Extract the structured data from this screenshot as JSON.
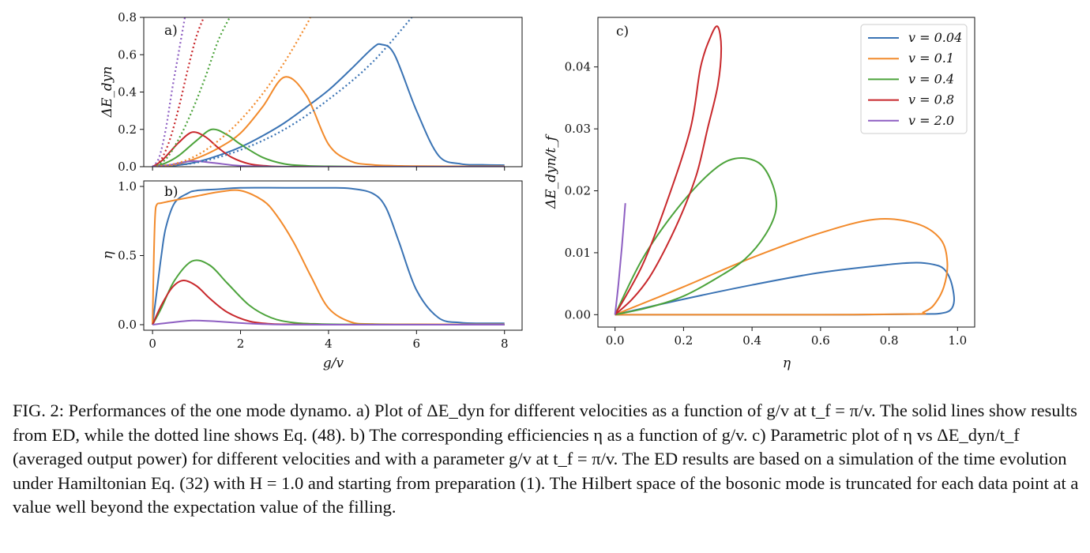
{
  "colors": {
    "v=0.04": "#3a73b4",
    "v=0.1": "#f28a2b",
    "v=0.4": "#4ca33b",
    "v=0.8": "#c8282c",
    "v=2.0": "#8e5fc2"
  },
  "chart_data": [
    {
      "panel": "a)",
      "type": "line",
      "ylabel": "ΔE_dyn",
      "xlim": [
        -0.2,
        8.4
      ],
      "ylim": [
        0,
        0.8
      ],
      "yticks": [
        "0.0",
        "0.2",
        "0.4",
        "0.6",
        "0.8"
      ],
      "series": [
        {
          "name": "v = 0.04",
          "style": "solid",
          "x": [
            0,
            0.5,
            1,
            1.5,
            2,
            2.5,
            3,
            3.5,
            4,
            4.5,
            5,
            5.2,
            5.5,
            6,
            6.5,
            7,
            7.5,
            8
          ],
          "y": [
            0,
            0.006,
            0.025,
            0.06,
            0.105,
            0.165,
            0.235,
            0.32,
            0.41,
            0.52,
            0.635,
            0.655,
            0.6,
            0.3,
            0.06,
            0.015,
            0.01,
            0.008
          ]
        },
        {
          "name": "v = 0.1",
          "style": "solid",
          "x": [
            0,
            0.5,
            1,
            1.5,
            2,
            2.5,
            3,
            3.5,
            4,
            4.5,
            5,
            5.5,
            6,
            7,
            8
          ],
          "y": [
            0,
            0.01,
            0.045,
            0.1,
            0.18,
            0.32,
            0.48,
            0.38,
            0.12,
            0.03,
            0.01,
            0.005,
            0.003,
            0.002,
            0.002
          ]
        },
        {
          "name": "v = 0.4",
          "style": "solid",
          "x": [
            0,
            0.3,
            0.6,
            1,
            1.35,
            1.7,
            2,
            2.5,
            3,
            3.5,
            4,
            5,
            6,
            7,
            8
          ],
          "y": [
            0,
            0.02,
            0.06,
            0.14,
            0.2,
            0.17,
            0.12,
            0.05,
            0.015,
            0.005,
            0.002,
            0,
            0,
            0,
            0
          ]
        },
        {
          "name": "v = 0.8",
          "style": "solid",
          "x": [
            0,
            0.2,
            0.4,
            0.6,
            0.9,
            1.2,
            1.5,
            1.8,
            2.2,
            2.6,
            3,
            4,
            5,
            6,
            7,
            8
          ],
          "y": [
            0,
            0.03,
            0.08,
            0.13,
            0.185,
            0.16,
            0.1,
            0.05,
            0.015,
            0.004,
            0,
            0,
            0,
            0,
            0,
            0
          ]
        },
        {
          "name": "v = 2.0",
          "style": "solid",
          "x": [
            0,
            0.4,
            0.9,
            1.4,
            2,
            3,
            4,
            5,
            6,
            7,
            8
          ],
          "y": [
            0,
            0.01,
            0.03,
            0.02,
            0.005,
            0,
            0,
            0,
            0,
            0,
            0
          ]
        },
        {
          "name": "v = 0.04 (Eq. 48)",
          "style": "dotted",
          "x": [
            0,
            1,
            2,
            3,
            4,
            5,
            6
          ],
          "y": [
            0,
            0.022,
            0.09,
            0.2,
            0.36,
            0.56,
            0.83
          ]
        },
        {
          "name": "v = 0.1 (Eq. 48)",
          "style": "dotted",
          "x": [
            0,
            0.5,
            1,
            1.5,
            2,
            2.5,
            3,
            3.5,
            3.6
          ],
          "y": [
            0,
            0.015,
            0.06,
            0.14,
            0.25,
            0.39,
            0.56,
            0.76,
            0.81
          ]
        },
        {
          "name": "v = 0.4 (Eq. 48)",
          "style": "dotted",
          "x": [
            0,
            0.3,
            0.6,
            0.9,
            1.2,
            1.5,
            1.8
          ],
          "y": [
            0,
            0.04,
            0.15,
            0.3,
            0.48,
            0.68,
            0.82
          ]
        },
        {
          "name": "v = 0.8 (Eq. 48)",
          "style": "dotted",
          "x": [
            0,
            0.2,
            0.4,
            0.6,
            0.8,
            1,
            1.2
          ],
          "y": [
            0,
            0.04,
            0.15,
            0.32,
            0.52,
            0.7,
            0.82
          ]
        },
        {
          "name": "v = 2.0 (Eq. 48)",
          "style": "dotted",
          "x": [
            0,
            0.15,
            0.3,
            0.45,
            0.6,
            0.75
          ],
          "y": [
            0,
            0.05,
            0.2,
            0.42,
            0.62,
            0.82
          ]
        }
      ]
    },
    {
      "panel": "b)",
      "type": "line",
      "xlabel": "g/v",
      "ylabel": "η",
      "xlim": [
        -0.2,
        8.4
      ],
      "ylim": [
        -0.04,
        1.04
      ],
      "xticks": [
        "0",
        "2",
        "4",
        "6",
        "8"
      ],
      "yticks": [
        "0.0",
        "0.5",
        "1.0"
      ],
      "series": [
        {
          "name": "v = 0.04",
          "style": "solid",
          "x": [
            0,
            0.1,
            0.2,
            0.3,
            0.5,
            0.8,
            1,
            1.5,
            2,
            3,
            4,
            4.5,
            5,
            5.3,
            5.6,
            6,
            6.5,
            7,
            7.5,
            8
          ],
          "y": [
            0,
            0.25,
            0.5,
            0.7,
            0.88,
            0.95,
            0.97,
            0.98,
            0.99,
            0.99,
            0.99,
            0.985,
            0.95,
            0.85,
            0.6,
            0.25,
            0.05,
            0.015,
            0.01,
            0.01
          ]
        },
        {
          "name": "v = 0.1",
          "style": "solid",
          "x": [
            0,
            0.03,
            0.06,
            0.1,
            0.2,
            0.5,
            1,
            1.5,
            2,
            2.5,
            2.8,
            3.2,
            3.6,
            4,
            4.5,
            5,
            6,
            7,
            8
          ],
          "y": [
            0,
            0.5,
            0.8,
            0.87,
            0.88,
            0.9,
            0.93,
            0.96,
            0.97,
            0.9,
            0.8,
            0.6,
            0.35,
            0.12,
            0.02,
            0.005,
            0.003,
            0.002,
            0.002
          ]
        },
        {
          "name": "v = 0.4",
          "style": "solid",
          "x": [
            0,
            0.2,
            0.5,
            0.9,
            1.3,
            1.7,
            2.2,
            2.7,
            3.2,
            3.8,
            4.5,
            5.5,
            6.5,
            7.5,
            8
          ],
          "y": [
            0,
            0.12,
            0.32,
            0.46,
            0.43,
            0.3,
            0.14,
            0.05,
            0.015,
            0.005,
            0.002,
            0.001,
            0,
            0,
            0
          ]
        },
        {
          "name": "v = 0.8",
          "style": "solid",
          "x": [
            0,
            0.2,
            0.45,
            0.7,
            1,
            1.3,
            1.7,
            2.2,
            2.7,
            3.3,
            4,
            5.2,
            6,
            7,
            8
          ],
          "y": [
            0,
            0.14,
            0.27,
            0.32,
            0.28,
            0.19,
            0.09,
            0.025,
            0.006,
            0.002,
            0,
            0,
            0,
            0,
            0
          ]
        },
        {
          "name": "v = 2.0",
          "style": "solid",
          "x": [
            0,
            0.4,
            0.9,
            1.4,
            2,
            2.5,
            3,
            4,
            5,
            6,
            7,
            8
          ],
          "y": [
            0,
            0.015,
            0.03,
            0.025,
            0.012,
            0.004,
            0.001,
            0,
            0,
            0,
            0,
            0
          ]
        }
      ]
    },
    {
      "panel": "c)",
      "type": "line",
      "xlabel": "η",
      "ylabel": "ΔE_dyn/t_f",
      "xlim": [
        -0.05,
        1.05
      ],
      "ylim": [
        -0.002,
        0.048
      ],
      "xticks": [
        "0.0",
        "0.2",
        "0.4",
        "0.6",
        "0.8",
        "1.0"
      ],
      "yticks": [
        "0.00",
        "0.01",
        "0.02",
        "0.03",
        "0.04"
      ],
      "legend_position": "top-right",
      "series": [
        {
          "name": "v = 0.04",
          "x": [
            0,
            0.2,
            0.4,
            0.6,
            0.8,
            0.88,
            0.93,
            0.96,
            0.98,
            0.99,
            0.98,
            0.95,
            0.9,
            0.7,
            0.4,
            0.2,
            0
          ],
          "y": [
            0,
            0.0025,
            0.0048,
            0.0068,
            0.0081,
            0.0084,
            0.0081,
            0.0074,
            0.0055,
            0.0025,
            0.0008,
            0.0002,
            0.0001,
            0,
            0,
            0,
            0
          ]
        },
        {
          "name": "v = 0.1",
          "x": [
            0,
            0.2,
            0.4,
            0.6,
            0.76,
            0.88,
            0.95,
            0.97,
            0.96,
            0.93,
            0.9,
            0.88,
            0.6,
            0.3,
            0
          ],
          "y": [
            0,
            0.0045,
            0.0092,
            0.0132,
            0.0154,
            0.0147,
            0.0122,
            0.0085,
            0.0045,
            0.0015,
            0.0004,
            0.0001,
            0,
            0,
            0
          ]
        },
        {
          "name": "v = 0.4",
          "x": [
            0,
            0.1,
            0.2,
            0.3,
            0.38,
            0.44,
            0.47,
            0.46,
            0.42,
            0.35,
            0.28,
            0.18,
            0.08,
            0
          ],
          "y": [
            0,
            0.0012,
            0.003,
            0.006,
            0.009,
            0.013,
            0.017,
            0.021,
            0.0245,
            0.0252,
            0.023,
            0.017,
            0.009,
            0
          ]
        },
        {
          "name": "v = 0.8",
          "x": [
            0,
            0.05,
            0.1,
            0.15,
            0.2,
            0.24,
            0.27,
            0.3,
            0.31,
            0.3,
            0.28,
            0.25,
            0.22,
            0.15,
            0.08,
            0
          ],
          "y": [
            0,
            0.0025,
            0.006,
            0.011,
            0.017,
            0.023,
            0.03,
            0.037,
            0.043,
            0.0465,
            0.045,
            0.04,
            0.03,
            0.018,
            0.008,
            0
          ]
        },
        {
          "name": "v = 2.0",
          "x": [
            0,
            0.01,
            0.02,
            0.03
          ],
          "y": [
            0,
            0.005,
            0.011,
            0.018
          ]
        }
      ]
    }
  ],
  "legend": [
    {
      "label": "v = 0.04"
    },
    {
      "label": "v = 0.1"
    },
    {
      "label": "v = 0.4"
    },
    {
      "label": "v = 0.8"
    },
    {
      "label": "v = 2.0"
    }
  ],
  "caption": "FIG. 2: Performances of the one mode dynamo. a) Plot of ΔE_dyn for different velocities as a function of g/v at t_f = π/v. The solid lines show results from ED, while the dotted line shows Eq. (48). b) The corresponding efficiencies η as a function of g/v. c) Parametric plot of η vs ΔE_dyn/t_f (averaged output power) for different velocities and with a parameter g/v at t_f = π/v. The ED results are based on a simulation of the time evolution under Hamiltonian Eq. (32) with H = 1.0 and starting from preparation (1). The Hilbert space of the bosonic mode is truncated for each data point at a value well beyond the expectation value of the filling."
}
